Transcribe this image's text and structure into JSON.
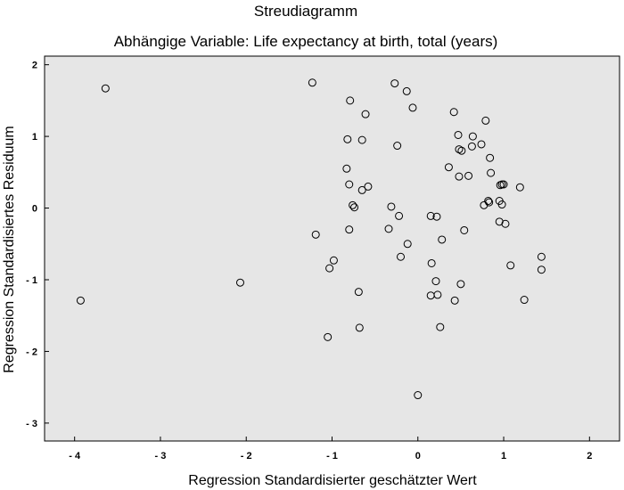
{
  "chart_data": {
    "type": "scatter",
    "title": "Streudiagramm",
    "subtitle": "Abhängige Variable: Life expectancy at birth, total (years)",
    "xlabel": "Regression Standardisierter geschätzter Wert",
    "ylabel": "Regression Standardisiertes Residuum",
    "xlim": [
      -4.35,
      2.35
    ],
    "ylim": [
      -3.25,
      2.12
    ],
    "xticks": [
      -4,
      -3,
      -2,
      -1,
      0,
      1,
      2
    ],
    "yticks": [
      2,
      1,
      0,
      -1,
      -2,
      -3
    ],
    "xtick_labels": [
      "- 4",
      "- 3",
      "- 2",
      "- 1",
      "0",
      "1",
      "2"
    ],
    "ytick_labels": [
      "2",
      "1",
      "0",
      "- 1",
      "- 2",
      "- 3"
    ],
    "grid": false,
    "colors": {
      "plot_background": "#e6e6e6",
      "marker_stroke": "#000000",
      "marker_fill": "none"
    },
    "points": [
      {
        "x": -3.64,
        "y": 1.67
      },
      {
        "x": -3.93,
        "y": -1.29
      },
      {
        "x": -2.07,
        "y": -1.04
      },
      {
        "x": -1.23,
        "y": 1.75
      },
      {
        "x": -0.27,
        "y": 1.74
      },
      {
        "x": -0.13,
        "y": 1.63
      },
      {
        "x": -0.79,
        "y": 1.5
      },
      {
        "x": -0.06,
        "y": 1.4
      },
      {
        "x": -0.61,
        "y": 1.31
      },
      {
        "x": 0.42,
        "y": 1.34
      },
      {
        "x": 0.79,
        "y": 1.22
      },
      {
        "x": -0.82,
        "y": 0.96
      },
      {
        "x": -0.65,
        "y": 0.95
      },
      {
        "x": -0.24,
        "y": 0.87
      },
      {
        "x": 0.47,
        "y": 1.02
      },
      {
        "x": 0.64,
        "y": 1.0
      },
      {
        "x": 0.48,
        "y": 0.82
      },
      {
        "x": 0.51,
        "y": 0.8
      },
      {
        "x": 0.63,
        "y": 0.86
      },
      {
        "x": 0.74,
        "y": 0.89
      },
      {
        "x": 0.84,
        "y": 0.7
      },
      {
        "x": -0.83,
        "y": 0.55
      },
      {
        "x": 0.36,
        "y": 0.57
      },
      {
        "x": 0.48,
        "y": 0.44
      },
      {
        "x": 0.59,
        "y": 0.45
      },
      {
        "x": 0.85,
        "y": 0.49
      },
      {
        "x": -0.8,
        "y": 0.33
      },
      {
        "x": -0.58,
        "y": 0.3
      },
      {
        "x": -0.65,
        "y": 0.25
      },
      {
        "x": 0.96,
        "y": 0.32
      },
      {
        "x": 0.98,
        "y": 0.33
      },
      {
        "x": 1.0,
        "y": 0.33
      },
      {
        "x": 1.19,
        "y": 0.29
      },
      {
        "x": -0.76,
        "y": 0.04
      },
      {
        "x": -0.74,
        "y": 0.01
      },
      {
        "x": -0.31,
        "y": 0.02
      },
      {
        "x": 0.82,
        "y": 0.1
      },
      {
        "x": 0.83,
        "y": 0.08
      },
      {
        "x": 0.77,
        "y": 0.04
      },
      {
        "x": 0.95,
        "y": 0.1
      },
      {
        "x": 0.98,
        "y": 0.05
      },
      {
        "x": -0.22,
        "y": -0.11
      },
      {
        "x": 0.15,
        "y": -0.11
      },
      {
        "x": 0.22,
        "y": -0.12
      },
      {
        "x": 0.95,
        "y": -0.19
      },
      {
        "x": 1.02,
        "y": -0.22
      },
      {
        "x": -1.19,
        "y": -0.37
      },
      {
        "x": -0.8,
        "y": -0.3
      },
      {
        "x": -0.34,
        "y": -0.29
      },
      {
        "x": 0.54,
        "y": -0.31
      },
      {
        "x": 0.28,
        "y": -0.44
      },
      {
        "x": -0.12,
        "y": -0.5
      },
      {
        "x": -0.2,
        "y": -0.68
      },
      {
        "x": -0.98,
        "y": -0.73
      },
      {
        "x": -1.03,
        "y": -0.84
      },
      {
        "x": 0.16,
        "y": -0.77
      },
      {
        "x": 1.44,
        "y": -0.68
      },
      {
        "x": 1.08,
        "y": -0.8
      },
      {
        "x": 1.44,
        "y": -0.86
      },
      {
        "x": 0.21,
        "y": -1.02
      },
      {
        "x": 0.5,
        "y": -1.06
      },
      {
        "x": -0.69,
        "y": -1.17
      },
      {
        "x": 0.15,
        "y": -1.22
      },
      {
        "x": 0.23,
        "y": -1.21
      },
      {
        "x": 0.43,
        "y": -1.29
      },
      {
        "x": 1.24,
        "y": -1.28
      },
      {
        "x": -0.68,
        "y": -1.67
      },
      {
        "x": 0.26,
        "y": -1.66
      },
      {
        "x": -1.05,
        "y": -1.8
      },
      {
        "x": 0.0,
        "y": -2.61
      }
    ]
  }
}
